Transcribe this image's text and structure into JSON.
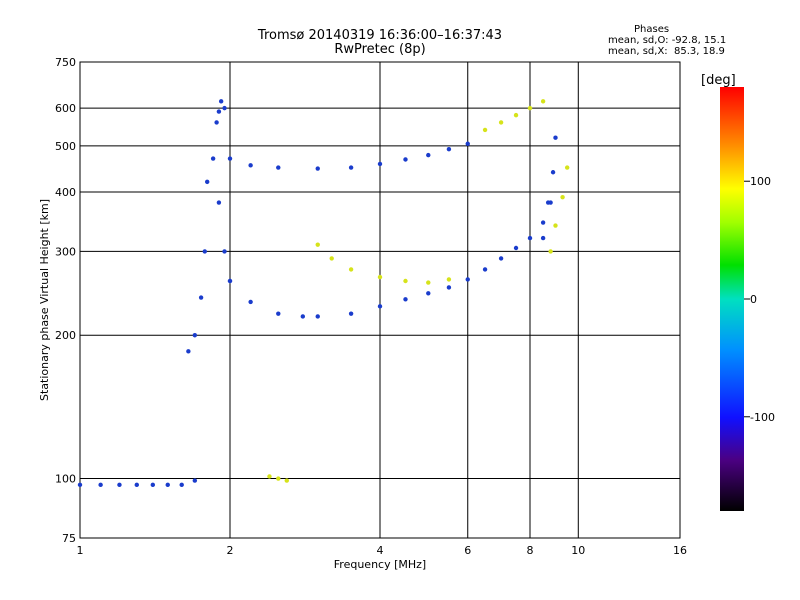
{
  "header": {
    "title": "Tromsø 20140319 16:36:00–16:37:43",
    "subtitle": "RwPretec (8p)"
  },
  "stats": {
    "heading": "Phases",
    "line_o": "mean, sd,O: -92.8, 15.1",
    "line_x": "mean, sd,X:  85.3, 18.9"
  },
  "colorbar": {
    "label": "[deg]",
    "ticks": [
      100,
      0,
      -100
    ],
    "range": [
      -180,
      180
    ]
  },
  "colors": {
    "o_mode": "#1a3ccc",
    "x_mode": "#d6e31a",
    "grid": "#000000"
  },
  "chart_data": {
    "type": "scatter",
    "xlabel": "Frequency [MHz]",
    "ylabel": "Stationary phase Virtual Height [km]",
    "xscale": "log",
    "yscale": "log",
    "xlim": [
      1,
      16
    ],
    "ylim": [
      75,
      750
    ],
    "xticks": [
      1,
      2,
      4,
      6,
      8,
      10,
      16
    ],
    "yticks": [
      75,
      100,
      200,
      300,
      400,
      500,
      600,
      750
    ],
    "grid": true,
    "series": [
      {
        "x": [
          1.0,
          1.1,
          1.2,
          1.3,
          1.4,
          1.5,
          1.6,
          1.7
        ],
        "y": [
          97,
          97,
          97,
          97,
          97,
          97,
          97,
          99
        ]
      },
      {
        "x": [
          1.65,
          1.7,
          1.75,
          1.78,
          1.8,
          1.85,
          1.9,
          1.95,
          2.0
        ],
        "y": [
          185,
          200,
          240,
          300,
          420,
          470,
          380,
          300,
          260
        ]
      },
      {
        "x": [
          2.0,
          2.2,
          2.5,
          2.8,
          3.0,
          3.5,
          4.0,
          4.5,
          5.0,
          5.5,
          6.0,
          6.5,
          7.0,
          7.5,
          8.0,
          8.5,
          8.8
        ],
        "y": [
          260,
          235,
          222,
          219,
          219,
          222,
          230,
          238,
          245,
          252,
          262,
          275,
          290,
          305,
          320,
          345,
          380
        ]
      },
      {
        "x": [
          2.0,
          2.2,
          2.5,
          3.0,
          3.5,
          4.0,
          4.5,
          5.0,
          5.5,
          6.0
        ],
        "y": [
          470,
          455,
          450,
          448,
          450,
          458,
          468,
          478,
          492,
          505
        ]
      },
      {
        "x": [
          8.5,
          8.7,
          8.9,
          9.0
        ],
        "y": [
          320,
          380,
          440,
          520
        ]
      },
      {
        "x": [
          1.88,
          1.9,
          1.92,
          1.95
        ],
        "y": [
          560,
          590,
          620,
          600
        ]
      },
      {
        "x": [
          3.0,
          3.2,
          3.5,
          4.0,
          4.5,
          5.0,
          5.5
        ],
        "y": [
          310,
          290,
          275,
          265,
          260,
          258,
          262
        ]
      },
      {
        "x": [
          6.5,
          7.0,
          7.5,
          8.0,
          8.5
        ],
        "y": [
          540,
          560,
          580,
          600,
          620
        ]
      },
      {
        "x": [
          8.8,
          9.0,
          9.3,
          9.5
        ],
        "y": [
          300,
          340,
          390,
          450
        ]
      },
      {
        "x": [
          2.4,
          2.5,
          2.6
        ],
        "y": [
          101,
          100,
          99
        ]
      }
    ]
  }
}
